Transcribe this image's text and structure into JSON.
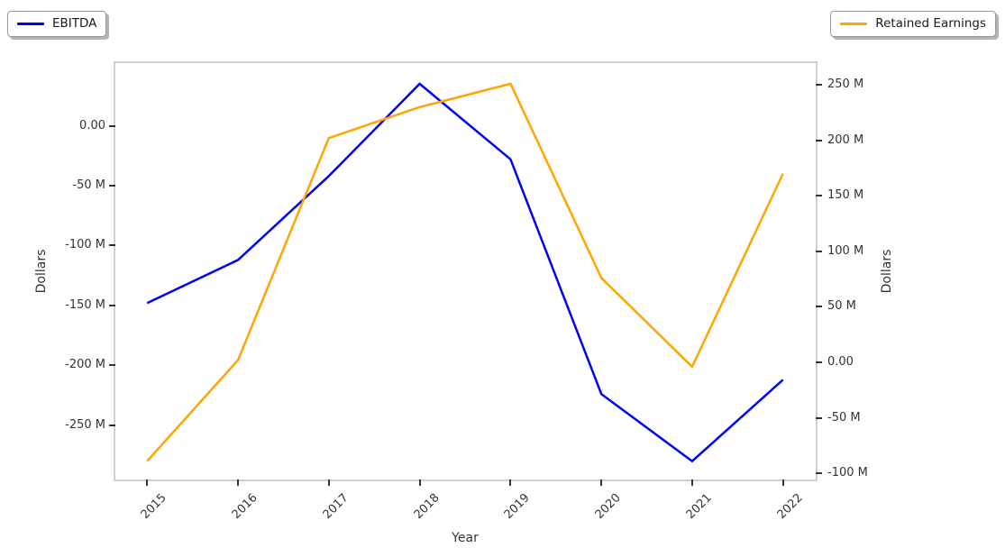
{
  "chart_data": {
    "type": "line",
    "title": "",
    "xlabel": "Year",
    "x": [
      2015,
      2016,
      2017,
      2018,
      2019,
      2020,
      2021,
      2022
    ],
    "x_tick_labels": [
      "2015",
      "2016",
      "2017",
      "2018",
      "2019",
      "2020",
      "2021",
      "2022"
    ],
    "x_range": [
      2014.65,
      2022.36
    ],
    "grid": false,
    "series": [
      {
        "name": "EBITDA",
        "axis": "left",
        "color": "#0000ff",
        "unit": "M",
        "values_millions": [
          -148,
          -112,
          -42,
          35,
          -28,
          -224,
          -280,
          -212
        ]
      },
      {
        "name": "Retained Earnings",
        "axis": "right",
        "color": "#ffa500",
        "unit": "M",
        "values_millions": [
          -89,
          2,
          202,
          230,
          251,
          76,
          -4,
          170
        ]
      }
    ],
    "left_axis": {
      "label": "Dollars",
      "top_value": 52.3,
      "bottom_value": -295.3,
      "ticks": [
        {
          "label": "0.00",
          "value": 0
        },
        {
          "label": "-50 M",
          "value": -50
        },
        {
          "label": "-100 M",
          "value": -100
        },
        {
          "label": "-150 M",
          "value": -150
        },
        {
          "label": "-200 M",
          "value": -200
        },
        {
          "label": "-250 M",
          "value": -250
        }
      ]
    },
    "right_axis": {
      "label": "Dollars",
      "top_value": 269.6,
      "bottom_value": -105.6,
      "ticks": [
        {
          "label": "250 M",
          "value": 250
        },
        {
          "label": "200 M",
          "value": 200
        },
        {
          "label": "150 M",
          "value": 150
        },
        {
          "label": "100 M",
          "value": 100
        },
        {
          "label": "50 M",
          "value": 50
        },
        {
          "label": "0.00",
          "value": 0
        },
        {
          "label": "-50 M",
          "value": -50
        },
        {
          "label": "-100 M",
          "value": -100
        }
      ]
    },
    "legend": {
      "left": {
        "label": "EBITDA",
        "color": "#0000ff"
      },
      "right": {
        "label": "Retained Earnings",
        "color": "#ffa500"
      }
    }
  }
}
